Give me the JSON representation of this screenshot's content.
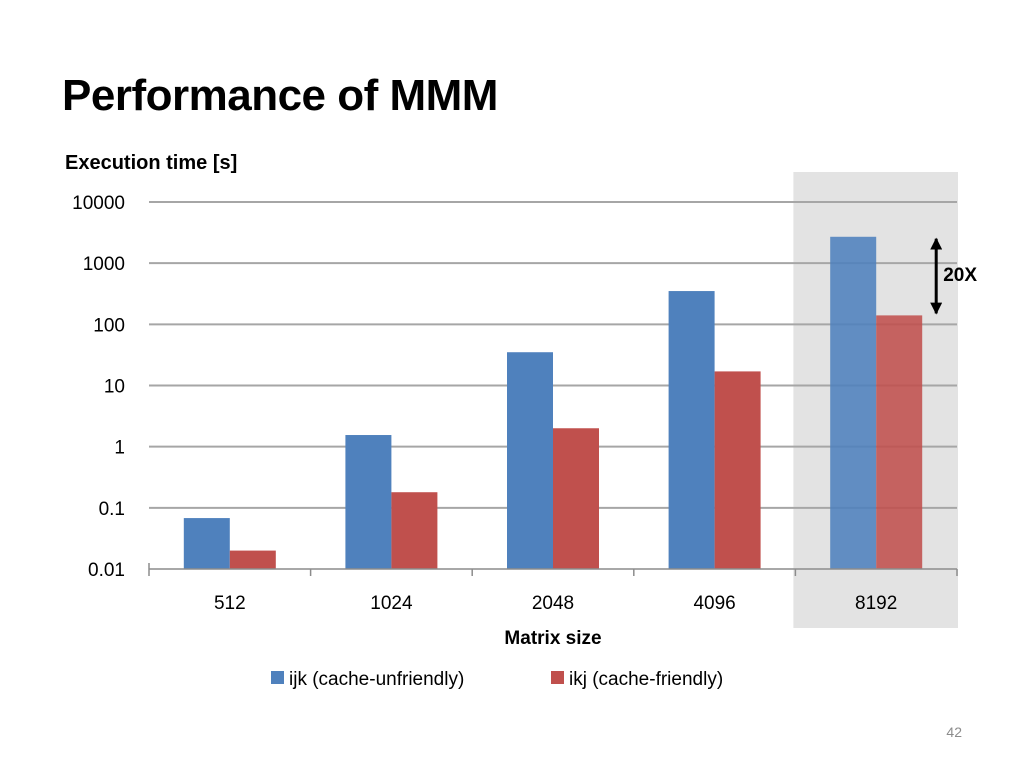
{
  "slide": {
    "title": "Performance of MMM",
    "page_number": "42"
  },
  "chart_data": {
    "type": "bar",
    "y_scale": "log",
    "ylabel": "Execution time [s]",
    "xlabel": "Matrix size",
    "categories": [
      "512",
      "1024",
      "2048",
      "4096",
      "8192"
    ],
    "series": [
      {
        "name": "ijk (cache-unfriendly)",
        "color": "#4F81BD",
        "values": [
          0.068,
          1.55,
          35,
          350,
          2700
        ]
      },
      {
        "name": "ikj (cache-friendly)",
        "color": "#C0504D",
        "values": [
          0.02,
          0.18,
          2.0,
          17,
          140
        ]
      }
    ],
    "ylim": [
      0.01,
      10000
    ],
    "y_ticks": [
      {
        "value": 10000,
        "label": "10000"
      },
      {
        "value": 1000,
        "label": "1000"
      },
      {
        "value": 100,
        "label": "100"
      },
      {
        "value": 10,
        "label": "10"
      },
      {
        "value": 1,
        "label": "1"
      },
      {
        "value": 0.1,
        "label": "0.1"
      },
      {
        "value": 0.01,
        "label": "0.01"
      }
    ],
    "grid": true,
    "legend_position": "bottom",
    "highlight_category": "8192",
    "highlight_color": "#E3E3E3",
    "annotation": {
      "text": "20X",
      "category": "8192"
    }
  }
}
